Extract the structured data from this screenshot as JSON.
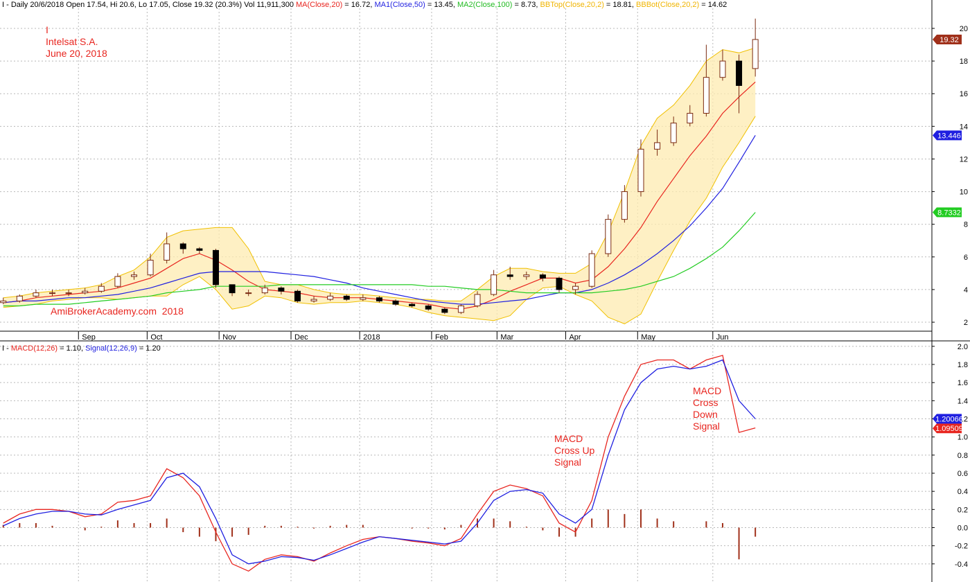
{
  "chart_data": [
    {
      "type": "candlestick",
      "header": [
        {
          "text": "I - Daily 20/6/2018 Open 17.54, Hi 20.6, Lo 17.05, Close 19.32 (20.3%) Vol 11,911,300 ",
          "color": "#000000"
        },
        {
          "text": "MA(Close,20)",
          "color": "#e8251f"
        },
        {
          "text": " = 16.72, ",
          "color": "#000000"
        },
        {
          "text": "MA1(Close,50)",
          "color": "#1f1fe0"
        },
        {
          "text": " = 13.45, ",
          "color": "#000000"
        },
        {
          "text": "MA2(Close,100)",
          "color": "#22bb22"
        },
        {
          "text": " = 8.73, ",
          "color": "#000000"
        },
        {
          "text": "BBTop(Close,20,2)",
          "color": "#f0b400"
        },
        {
          "text": " = 18.81, ",
          "color": "#000000"
        },
        {
          "text": "BBBot(Close,20,2)",
          "color": "#f0b400"
        },
        {
          "text": " = 14.62",
          "color": "#000000"
        }
      ],
      "annotations": [
        {
          "lines": [
            "I",
            "Intelsat S.A.",
            "June 20, 2018"
          ],
          "color": "#e8251f"
        },
        {
          "lines": [
            "AmiBrokerAcademy.com  2018"
          ],
          "color": "#e8251f"
        }
      ],
      "x": [
        0,
        5,
        10,
        15,
        20,
        25,
        30,
        35,
        40,
        45,
        50,
        55,
        60,
        65,
        70,
        75,
        80,
        85,
        90,
        95,
        100,
        105,
        110,
        115,
        120,
        125,
        130,
        135,
        140,
        145,
        150,
        155,
        160,
        165,
        170,
        175,
        180,
        185,
        190,
        195,
        200,
        205,
        210,
        215,
        220,
        225,
        230
      ],
      "xlim": [
        -1,
        284
      ],
      "xticks": [
        {
          "value": 23,
          "label": "Sep"
        },
        {
          "value": 44,
          "label": "Oct"
        },
        {
          "value": 66,
          "label": "Nov"
        },
        {
          "value": 88,
          "label": "Dec"
        },
        {
          "value": 109,
          "label": "2018"
        },
        {
          "value": 131,
          "label": "Feb"
        },
        {
          "value": 151,
          "label": "Mar"
        },
        {
          "value": 172,
          "label": "Apr"
        },
        {
          "value": 194,
          "label": "May"
        },
        {
          "value": 217,
          "label": "Jun"
        }
      ],
      "ylim": [
        1.45,
        21.23
      ],
      "yticks": [
        2,
        4,
        6,
        8,
        10,
        12,
        14,
        16,
        18,
        20
      ],
      "grid": true,
      "candles": {
        "up_color": "#ffffff",
        "down_color": "#000000",
        "edge_color": "#7a2a10",
        "open": [
          3.2,
          3.3,
          3.6,
          3.8,
          3.8,
          3.8,
          3.9,
          4.2,
          4.8,
          4.9,
          5.8,
          6.8,
          6.5,
          6.4,
          4.3,
          3.8,
          3.8,
          4.1,
          3.9,
          3.3,
          3.4,
          3.6,
          3.4,
          3.5,
          3.3,
          3.1,
          3.0,
          2.8,
          2.6,
          3.0,
          3.7,
          4.9,
          4.8,
          4.9,
          4.7,
          4.0,
          4.2,
          6.2,
          8.3,
          10.0,
          12.6,
          13.0,
          14.2,
          14.8,
          17.0,
          18.0,
          17.54
        ],
        "high": [
          3.5,
          3.7,
          4.0,
          4.0,
          4.0,
          4.1,
          4.4,
          5.0,
          5.1,
          6.2,
          7.5,
          6.9,
          6.6,
          6.5,
          4.3,
          4.0,
          4.3,
          4.2,
          4.0,
          3.6,
          3.8,
          3.7,
          3.7,
          3.6,
          3.4,
          3.2,
          3.1,
          2.9,
          3.1,
          3.9,
          5.2,
          5.4,
          5.1,
          5.0,
          4.8,
          4.4,
          6.4,
          8.6,
          10.4,
          13.2,
          13.8,
          14.6,
          15.3,
          19.0,
          18.7,
          18.4,
          20.6
        ],
        "low": [
          3.1,
          3.2,
          3.5,
          3.6,
          3.6,
          3.7,
          3.8,
          4.1,
          4.6,
          4.8,
          5.6,
          6.2,
          6.2,
          4.1,
          3.6,
          3.6,
          3.7,
          3.7,
          3.2,
          3.2,
          3.3,
          3.3,
          3.3,
          3.2,
          3.0,
          2.9,
          2.7,
          2.5,
          2.5,
          2.9,
          3.6,
          4.6,
          4.6,
          4.5,
          3.8,
          3.7,
          4.1,
          6.0,
          8.1,
          9.7,
          12.2,
          12.8,
          14.0,
          14.6,
          16.8,
          14.8,
          17.05
        ],
        "close": [
          3.3,
          3.6,
          3.8,
          3.8,
          3.8,
          3.9,
          4.2,
          4.8,
          4.9,
          5.8,
          6.8,
          6.5,
          6.4,
          4.3,
          3.8,
          3.8,
          4.1,
          3.9,
          3.3,
          3.4,
          3.6,
          3.4,
          3.5,
          3.3,
          3.1,
          3.0,
          2.8,
          2.6,
          3.0,
          3.7,
          4.9,
          4.8,
          4.9,
          4.7,
          4.0,
          4.2,
          6.2,
          8.3,
          10.0,
          12.6,
          13.0,
          14.2,
          14.8,
          17.0,
          18.0,
          16.5,
          19.32
        ],
        "badge": 19.32,
        "badge_color": "#a0301a"
      },
      "band": {
        "color": "#f0c000",
        "fill": "#fdebb0",
        "top": [
          3.5,
          3.6,
          3.8,
          3.9,
          4.0,
          4.1,
          4.3,
          4.8,
          5.2,
          6.0,
          7.2,
          7.6,
          7.7,
          7.8,
          7.8,
          6.5,
          4.5,
          4.3,
          4.3,
          4.0,
          3.8,
          3.7,
          3.7,
          3.6,
          3.5,
          3.4,
          3.4,
          3.3,
          3.3,
          4.0,
          4.8,
          5.3,
          5.3,
          5.1,
          5.0,
          5.0,
          5.6,
          7.5,
          10.0,
          12.8,
          14.5,
          15.3,
          16.5,
          18.0,
          18.7,
          18.5,
          18.81
        ],
        "bottom": [
          2.9,
          3.0,
          3.1,
          3.3,
          3.4,
          3.5,
          3.5,
          3.4,
          3.5,
          3.6,
          3.6,
          4.3,
          4.8,
          4.0,
          2.8,
          3.0,
          3.6,
          3.5,
          3.2,
          3.1,
          3.2,
          3.2,
          3.3,
          3.2,
          3.1,
          2.9,
          2.6,
          2.4,
          2.3,
          2.2,
          2.1,
          2.4,
          3.4,
          4.1,
          4.2,
          3.7,
          3.3,
          2.3,
          1.9,
          2.5,
          4.5,
          6.4,
          8.2,
          9.6,
          11.5,
          13.0,
          14.62
        ]
      },
      "lines": [
        {
          "color": "#e8251f",
          "values": [
            3.2,
            3.3,
            3.5,
            3.6,
            3.7,
            3.8,
            3.9,
            4.1,
            4.4,
            4.7,
            5.3,
            5.9,
            6.2,
            5.8,
            5.2,
            4.5,
            4.0,
            3.9,
            3.8,
            3.6,
            3.5,
            3.5,
            3.5,
            3.4,
            3.3,
            3.2,
            3.1,
            2.9,
            2.8,
            3.0,
            3.4,
            3.9,
            4.3,
            4.7,
            4.7,
            4.4,
            4.6,
            5.4,
            6.5,
            7.8,
            9.4,
            10.8,
            12.2,
            13.4,
            14.8,
            15.8,
            16.72
          ]
        },
        {
          "color": "#1f1fe0",
          "values": [
            3.2,
            3.3,
            3.3,
            3.4,
            3.5,
            3.5,
            3.6,
            3.7,
            3.9,
            4.1,
            4.4,
            4.7,
            5.0,
            5.1,
            5.1,
            5.1,
            5.1,
            5.0,
            4.9,
            4.8,
            4.6,
            4.4,
            4.1,
            3.9,
            3.7,
            3.5,
            3.3,
            3.2,
            3.1,
            3.1,
            3.2,
            3.3,
            3.4,
            3.6,
            3.8,
            3.8,
            4.0,
            4.4,
            4.9,
            5.5,
            6.2,
            7.0,
            7.9,
            9.0,
            10.2,
            11.8,
            13.45
          ],
          "badge": 13.446
        },
        {
          "color": "#22cc22",
          "values": [
            3.0,
            3.0,
            3.1,
            3.1,
            3.1,
            3.2,
            3.3,
            3.4,
            3.5,
            3.6,
            3.8,
            3.9,
            4.0,
            4.2,
            4.2,
            4.2,
            4.2,
            4.3,
            4.3,
            4.3,
            4.3,
            4.3,
            4.3,
            4.3,
            4.3,
            4.3,
            4.2,
            4.2,
            4.1,
            4.0,
            4.0,
            3.9,
            3.8,
            3.8,
            3.8,
            3.8,
            3.8,
            3.9,
            4.0,
            4.2,
            4.5,
            4.8,
            5.3,
            5.9,
            6.6,
            7.6,
            8.73
          ],
          "badge": 8.7332
        }
      ]
    },
    {
      "type": "macd",
      "header": [
        {
          "text": "I - ",
          "color": "#000000"
        },
        {
          "text": "MACD(12,26)",
          "color": "#e8251f"
        },
        {
          "text": " = 1.10, ",
          "color": "#000000"
        },
        {
          "text": "Signal(12,26,9)",
          "color": "#1f1fe0"
        },
        {
          "text": " = 1.20",
          "color": "#000000"
        }
      ],
      "annotations": [
        {
          "lines": [
            "MACD",
            "Cross Up",
            "Signal"
          ],
          "color": "#e8251f"
        },
        {
          "lines": [
            "MACD",
            "Cross",
            "Down",
            "Signal"
          ],
          "color": "#e8251f"
        }
      ],
      "x": [
        0,
        5,
        10,
        15,
        20,
        25,
        30,
        35,
        40,
        45,
        50,
        55,
        60,
        65,
        70,
        75,
        80,
        85,
        90,
        95,
        100,
        105,
        110,
        115,
        120,
        125,
        130,
        135,
        140,
        145,
        150,
        155,
        160,
        165,
        170,
        175,
        180,
        185,
        190,
        195,
        200,
        205,
        210,
        215,
        220,
        225,
        230
      ],
      "xlim": [
        -1,
        284
      ],
      "xgrid": [
        23,
        44,
        66,
        88,
        109,
        131,
        151,
        172,
        194,
        217
      ],
      "ylim": [
        -0.6,
        2.06
      ],
      "yticks": [
        -0.4,
        -0.2,
        {
          "value": 0,
          "label": "0.0"
        },
        0.2,
        0.4,
        0.6,
        0.8,
        {
          "value": 1,
          "label": "1.0"
        },
        1.2,
        1.4,
        1.6,
        1.8,
        {
          "value": 2,
          "label": "2.0"
        }
      ],
      "grid": true,
      "lines": [
        {
          "color": "#e8251f",
          "values": [
            0.05,
            0.15,
            0.2,
            0.2,
            0.18,
            0.12,
            0.15,
            0.28,
            0.3,
            0.35,
            0.65,
            0.55,
            0.35,
            -0.05,
            -0.4,
            -0.48,
            -0.35,
            -0.3,
            -0.32,
            -0.37,
            -0.28,
            -0.2,
            -0.13,
            -0.1,
            -0.12,
            -0.15,
            -0.17,
            -0.2,
            -0.12,
            0.15,
            0.4,
            0.47,
            0.43,
            0.35,
            0.05,
            -0.05,
            0.3,
            1.0,
            1.45,
            1.8,
            1.85,
            1.85,
            1.75,
            1.85,
            1.9,
            1.05,
            1.1
          ],
          "badge": 1.09509
        },
        {
          "color": "#1f1fe0",
          "values": [
            0.02,
            0.1,
            0.15,
            0.18,
            0.18,
            0.15,
            0.14,
            0.2,
            0.25,
            0.3,
            0.55,
            0.6,
            0.45,
            0.1,
            -0.3,
            -0.4,
            -0.37,
            -0.32,
            -0.33,
            -0.36,
            -0.3,
            -0.23,
            -0.16,
            -0.1,
            -0.12,
            -0.14,
            -0.16,
            -0.18,
            -0.15,
            0.05,
            0.3,
            0.4,
            0.42,
            0.38,
            0.15,
            0.05,
            0.2,
            0.8,
            1.3,
            1.6,
            1.75,
            1.78,
            1.75,
            1.78,
            1.85,
            1.4,
            1.2
          ],
          "badge": 1.20066
        }
      ],
      "histogram": {
        "color": "#a0301a",
        "values": [
          0.03,
          0.05,
          0.05,
          0.02,
          0,
          -0.03,
          0.01,
          0.08,
          0.05,
          0.05,
          0.1,
          -0.05,
          -0.1,
          -0.15,
          -0.1,
          -0.08,
          0.02,
          0.02,
          0.01,
          -0.01,
          0.02,
          0.03,
          0.03,
          0,
          0,
          -0.01,
          -0.01,
          -0.02,
          0.03,
          0.1,
          0.1,
          0.07,
          0.01,
          -0.03,
          -0.1,
          -0.1,
          0.1,
          0.2,
          0.15,
          0.2,
          0.1,
          0.07,
          0,
          0.07,
          0.05,
          -0.35,
          -0.1
        ]
      }
    }
  ]
}
